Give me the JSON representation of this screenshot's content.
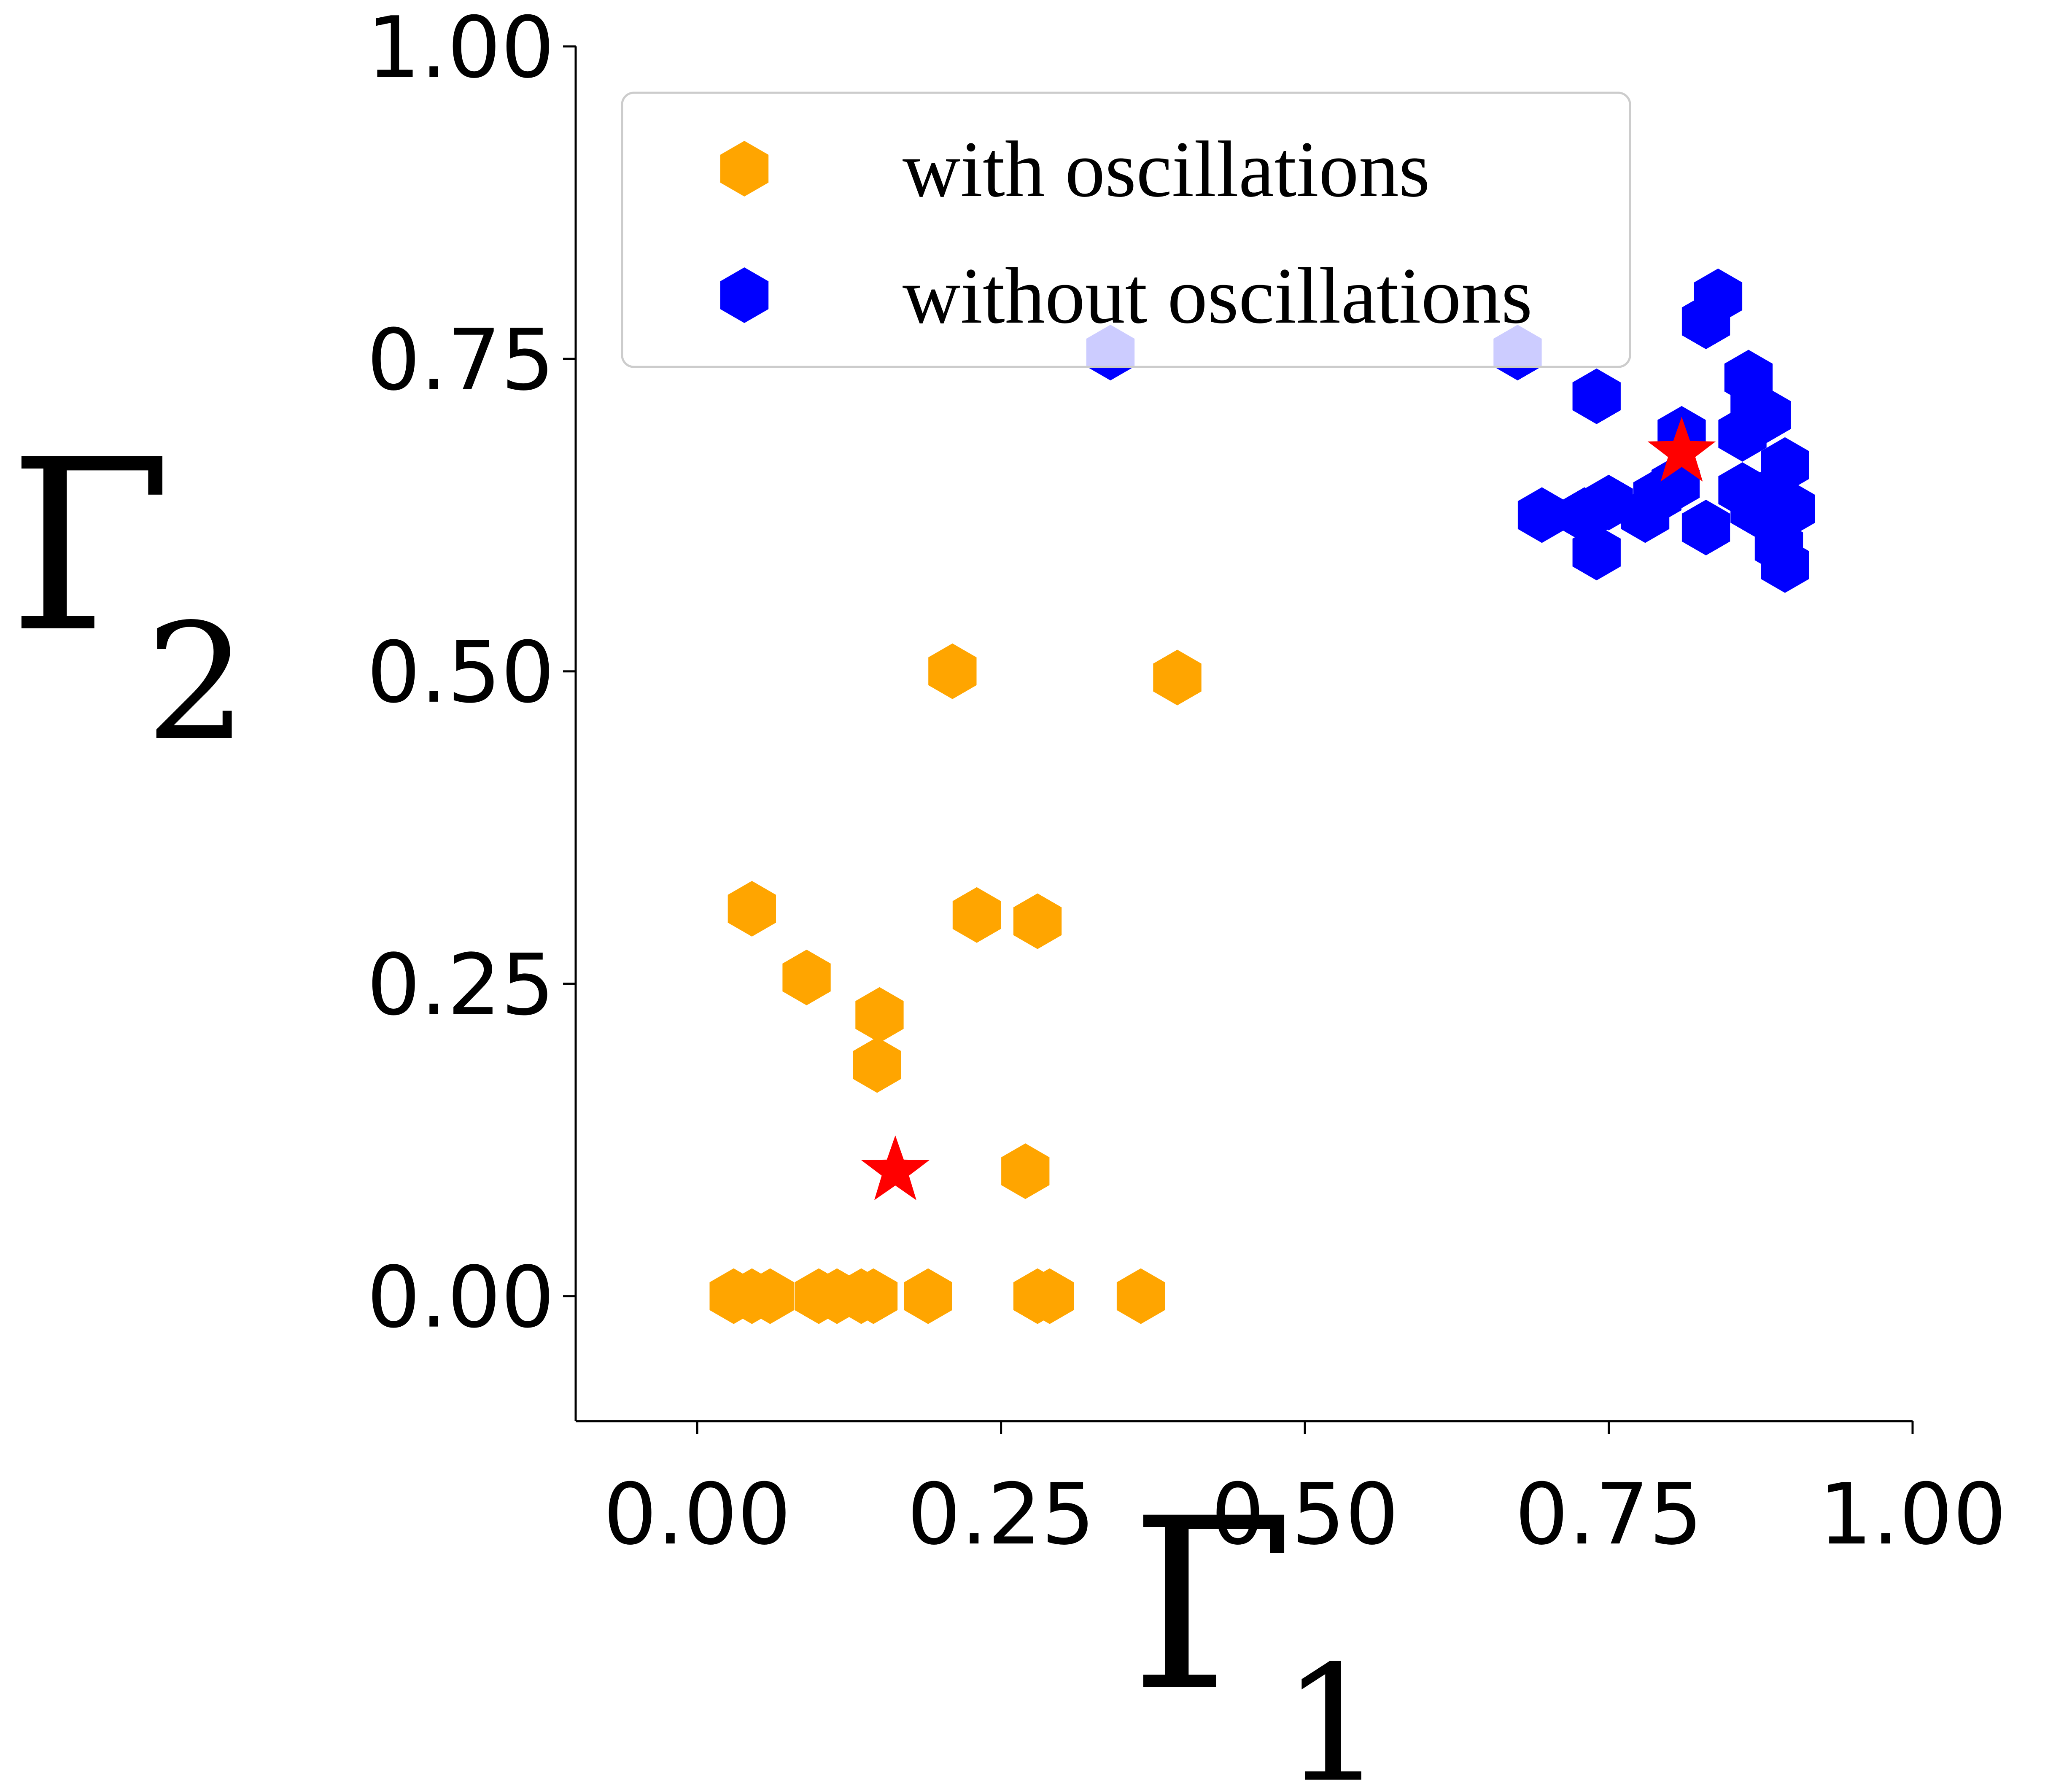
{
  "chart_data": {
    "type": "scatter",
    "title": "",
    "xlabel": "Γ",
    "xlabel_sub": "1",
    "ylabel": "Γ",
    "ylabel_sub": "2",
    "xlim": [
      -0.1,
      1.0
    ],
    "ylim": [
      -0.1,
      1.0
    ],
    "xticks": [
      0.0,
      0.25,
      0.5,
      0.75,
      1.0
    ],
    "yticks": [
      0.0,
      0.25,
      0.5,
      0.75,
      1.0
    ],
    "xtick_labels": [
      "0.00",
      "0.25",
      "0.50",
      "0.75",
      "1.00"
    ],
    "ytick_labels": [
      "0.00",
      "0.25",
      "0.50",
      "0.75",
      "1.00"
    ],
    "grid": false,
    "legend_position": "top",
    "series": [
      {
        "name": "with oscillations",
        "marker": "hexagon",
        "color": "#FFA500",
        "points": [
          [
            0.03,
            0.0
          ],
          [
            0.045,
            0.0
          ],
          [
            0.06,
            0.0
          ],
          [
            0.1,
            0.0
          ],
          [
            0.115,
            0.0
          ],
          [
            0.135,
            0.0
          ],
          [
            0.145,
            0.0
          ],
          [
            0.19,
            0.0
          ],
          [
            0.28,
            0.0
          ],
          [
            0.29,
            0.0
          ],
          [
            0.365,
            0.0
          ],
          [
            0.045,
            0.31
          ],
          [
            0.09,
            0.255
          ],
          [
            0.15,
            0.225
          ],
          [
            0.148,
            0.185
          ],
          [
            0.21,
            0.5
          ],
          [
            0.23,
            0.305
          ],
          [
            0.28,
            0.3
          ],
          [
            0.27,
            0.1
          ],
          [
            0.395,
            0.495
          ]
        ]
      },
      {
        "name": "without oscillations",
        "marker": "hexagon",
        "color": "#0000FF",
        "points": [
          [
            0.34,
            0.755
          ],
          [
            0.675,
            0.755
          ],
          [
            0.74,
            0.72
          ],
          [
            0.84,
            0.8
          ],
          [
            0.83,
            0.78
          ],
          [
            0.865,
            0.735
          ],
          [
            0.87,
            0.71
          ],
          [
            0.81,
            0.69
          ],
          [
            0.88,
            0.705
          ],
          [
            0.86,
            0.69
          ],
          [
            0.79,
            0.64
          ],
          [
            0.805,
            0.65
          ],
          [
            0.695,
            0.625
          ],
          [
            0.73,
            0.625
          ],
          [
            0.75,
            0.635
          ],
          [
            0.78,
            0.625
          ],
          [
            0.74,
            0.595
          ],
          [
            0.83,
            0.615
          ],
          [
            0.86,
            0.645
          ],
          [
            0.895,
            0.665
          ],
          [
            0.88,
            0.64
          ],
          [
            0.9,
            0.63
          ],
          [
            0.87,
            0.63
          ],
          [
            0.89,
            0.6
          ],
          [
            0.895,
            0.585
          ]
        ]
      },
      {
        "marker": "star",
        "color": "#FF0000",
        "points": [
          [
            0.163,
            0.1
          ],
          [
            0.81,
            0.675
          ]
        ]
      }
    ]
  }
}
